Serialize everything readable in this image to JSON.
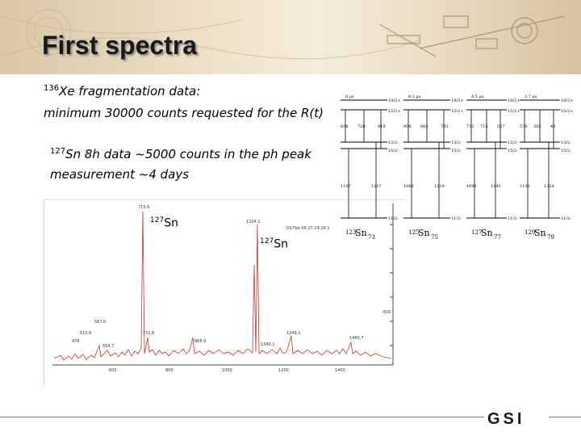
{
  "slide": {
    "title": "First spectra",
    "line1": {
      "mass": "136",
      "text": "Xe fragmentation data:"
    },
    "line2": "minimum 30000 counts requested for the R(t)",
    "line3": {
      "mass": "127",
      "text": "Sn 8h data ~5000 counts in the ph peak"
    },
    "line4": "measurement ~4 days",
    "label1": {
      "mass": "127",
      "text": "Sn"
    },
    "label2": {
      "mass": "127",
      "text": "Sn"
    },
    "logo_text": "GSI"
  },
  "spectrum": {
    "date_label": "03 Feb 06 17:14:29 1",
    "peak_labels": [
      "715.6",
      "1324.1",
      "567.0",
      "510.8",
      "476",
      "554.7",
      "731.6",
      "868.9",
      "1249.1",
      "1340.1",
      "1460.7"
    ],
    "x_ticks": [
      "600",
      "800",
      "1000",
      "1200",
      "1400"
    ],
    "y_tick": "600",
    "line_color": "#c0392b"
  },
  "levels": {
    "columns": [
      {
        "isomer": "8 μs",
        "spin_top": "19/2+",
        "spin2": "15/2+",
        "spin3": "13/2-",
        "spin4": "15/2-",
        "spin_g": "11/2-",
        "e_left": "838",
        "e_mid": "728",
        "e_right": "819",
        "e_low_left": "1107",
        "e_low_right": "1217",
        "nuclide": "123",
        "sym": "Sn",
        "n": "73"
      },
      {
        "isomer": "6.2 μs",
        "spin_top": "19/2+",
        "spin2": "15/2+",
        "spin3": "13/2-",
        "spin4": "15/2-",
        "spin_g": "11/2-",
        "e_left": "806",
        "e_mid": "664",
        "e_right": "793",
        "e_low_left": "1088",
        "e_low_right": "1219",
        "nuclide": "125",
        "sym": "Sn",
        "n": "75"
      },
      {
        "isomer": "4.5 μs",
        "spin_top": "19/2+",
        "spin2": "15/2+",
        "spin3": "13/2-",
        "spin4": "15/2-",
        "spin_g": "11/2-",
        "e_left": "732",
        "e_mid": "715",
        "e_right": "567",
        "e_low_left": "1095",
        "e_low_right": "1243",
        "nuclide": "127",
        "sym": "Sn",
        "n": "77"
      },
      {
        "isomer": "3.7 μs",
        "spin_top": "19/2+",
        "spin2": "15/2+",
        "spin3": "13/2-",
        "spin4": "15/2-",
        "spin_g": "11/2-",
        "e_left": "570",
        "e_mid": "382",
        "e_right": "40",
        "e_low_left": "1136",
        "e_low_right": "1324",
        "nuclide": "129",
        "sym": "Sn",
        "n": "79"
      }
    ]
  }
}
